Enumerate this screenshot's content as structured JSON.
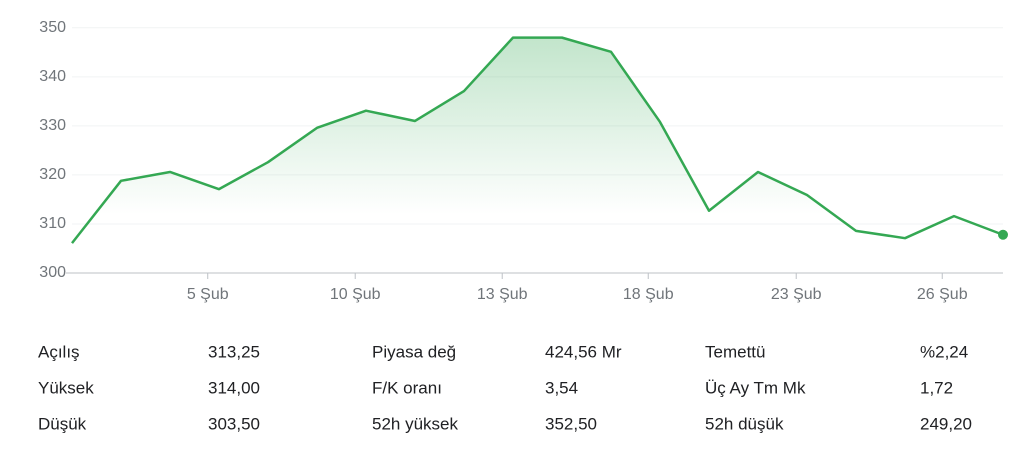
{
  "chart_data": {
    "type": "line",
    "x": [
      0,
      1,
      2,
      3,
      4,
      5,
      6,
      7,
      8,
      9,
      10,
      11,
      12,
      13,
      14,
      15,
      16,
      17,
      18,
      19
    ],
    "values": [
      306.1,
      318.8,
      320.6,
      317.1,
      322.6,
      329.6,
      333.1,
      331.0,
      337.1,
      348.0,
      348.0,
      345.1,
      330.8,
      312.7,
      320.6,
      315.9,
      308.6,
      307.1,
      311.6,
      307.8
    ],
    "color": "#34a853",
    "xlim": [
      0,
      19
    ],
    "xticks": [
      {
        "value": 2.77,
        "label": "5 Şub"
      },
      {
        "value": 5.78,
        "label": "10 Şub"
      },
      {
        "value": 8.78,
        "label": "13 Şub"
      },
      {
        "value": 11.76,
        "label": "18 Şub"
      },
      {
        "value": 14.78,
        "label": "23 Şub"
      },
      {
        "value": 17.76,
        "label": "26 Şub"
      }
    ],
    "ylim": [
      300,
      352
    ],
    "yticks": [
      300,
      310,
      320,
      330,
      340,
      350
    ],
    "grid": true
  },
  "stats": [
    [
      "Açılış",
      "313,25",
      "Piyasa değ",
      "424,56 Mr",
      "Temettü",
      "%2,24"
    ],
    [
      "Yüksek",
      "314,00",
      "F/K oranı",
      "3,54",
      "Üç Ay Tm Mk",
      "1,72"
    ],
    [
      "Düşük",
      "303,50",
      "52h yüksek",
      "352,50",
      "52h düşük",
      "249,20"
    ]
  ]
}
